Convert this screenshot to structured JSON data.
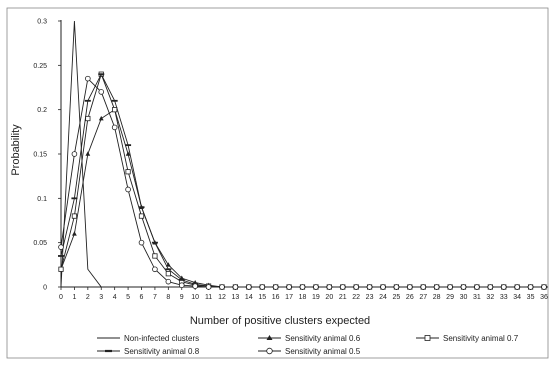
{
  "chart_data": {
    "type": "line",
    "title": "",
    "xlabel": "Number of positive clusters expected",
    "ylabel": "Probability",
    "xlim": [
      0,
      36
    ],
    "ylim": [
      0,
      0.3
    ],
    "x": [
      0,
      1,
      2,
      3,
      4,
      5,
      6,
      7,
      8,
      9,
      10,
      11,
      12,
      13,
      14,
      15,
      16,
      17,
      18,
      19,
      20,
      21,
      22,
      23,
      24,
      25,
      26,
      27,
      28,
      29,
      30,
      31,
      32,
      33,
      34,
      35,
      36
    ],
    "x_tick_labels": [
      "0",
      "1",
      "2",
      "3",
      "4",
      "5",
      "6",
      "7",
      "8",
      "9",
      "10",
      "11",
      "12",
      "13",
      "14",
      "15",
      "16",
      "17",
      "18",
      "19",
      "20",
      "21",
      "22",
      "23",
      "24",
      "25",
      "26",
      "27",
      "28",
      "29",
      "30",
      "31",
      "32",
      "33",
      "34",
      "35",
      "36"
    ],
    "y_tick_labels": [
      "0",
      "0.05",
      "0.1",
      "0.15",
      "0.2",
      "0.25",
      "0.3"
    ],
    "y_ticks": [
      0,
      0.05,
      0.1,
      0.15,
      0.2,
      0.25,
      0.3
    ],
    "grid": false,
    "legend_position": "bottom",
    "series": [
      {
        "name": "Non-infected clusters",
        "marker": "none",
        "values": [
          0.0,
          0.3,
          0.02,
          0.0,
          0.0,
          0.0,
          0.0,
          0.0,
          0.0,
          0.0,
          0.0,
          0.0,
          0.0,
          0.0,
          0.0,
          0.0,
          0.0,
          0.0,
          0.0,
          0.0,
          0.0,
          0.0,
          0.0,
          0.0,
          0.0,
          0.0,
          0.0,
          0.0,
          0.0,
          0.0,
          0.0,
          0.0,
          0.0,
          0.0,
          0.0,
          0.0,
          0.0
        ]
      },
      {
        "name": "Sensitivity animal 0.6",
        "marker": "triangle",
        "values": [
          0.02,
          0.06,
          0.15,
          0.19,
          0.2,
          0.15,
          0.09,
          0.05,
          0.025,
          0.01,
          0.005,
          0.002,
          0.0,
          0.0,
          0.0,
          0.0,
          0.0,
          0.0,
          0.0,
          0.0,
          0.0,
          0.0,
          0.0,
          0.0,
          0.0,
          0.0,
          0.0,
          0.0,
          0.0,
          0.0,
          0.0,
          0.0,
          0.0,
          0.0,
          0.0,
          0.0,
          0.0
        ]
      },
      {
        "name": "Sensitivity animal 0.7",
        "marker": "square",
        "values": [
          0.02,
          0.08,
          0.19,
          0.24,
          0.2,
          0.13,
          0.08,
          0.035,
          0.015,
          0.006,
          0.002,
          0.001,
          0.0,
          0.0,
          0.0,
          0.0,
          0.0,
          0.0,
          0.0,
          0.0,
          0.0,
          0.0,
          0.0,
          0.0,
          0.0,
          0.0,
          0.0,
          0.0,
          0.0,
          0.0,
          0.0,
          0.0,
          0.0,
          0.0,
          0.0,
          0.0,
          0.0
        ]
      },
      {
        "name": "Sensitivity animal 0.8",
        "marker": "dash",
        "values": [
          0.035,
          0.1,
          0.21,
          0.24,
          0.21,
          0.16,
          0.09,
          0.05,
          0.02,
          0.008,
          0.003,
          0.001,
          0.0,
          0.0,
          0.0,
          0.0,
          0.0,
          0.0,
          0.0,
          0.0,
          0.0,
          0.0,
          0.0,
          0.0,
          0.0,
          0.0,
          0.0,
          0.0,
          0.0,
          0.0,
          0.0,
          0.0,
          0.0,
          0.0,
          0.0,
          0.0,
          0.0
        ]
      },
      {
        "name": "Sensitivity animal 0.5",
        "marker": "circle",
        "values": [
          0.045,
          0.15,
          0.235,
          0.22,
          0.18,
          0.11,
          0.05,
          0.02,
          0.006,
          0.002,
          0.001,
          0.0,
          0.0,
          0.0,
          0.0,
          0.0,
          0.0,
          0.0,
          0.0,
          0.0,
          0.0,
          0.0,
          0.0,
          0.0,
          0.0,
          0.0,
          0.0,
          0.0,
          0.0,
          0.0,
          0.0,
          0.0,
          0.0,
          0.0,
          0.0,
          0.0,
          0.0
        ]
      }
    ],
    "legend_labels": [
      "Non-infected clusters",
      "Sensitivity animal 0.6",
      "Sensitivity animal 0.7",
      "Sensitivity animal 0.8",
      "Sensitivity animal 0.5"
    ]
  },
  "colors": {
    "line": "#222222",
    "frame": "#555555",
    "background": "#ffffff"
  }
}
